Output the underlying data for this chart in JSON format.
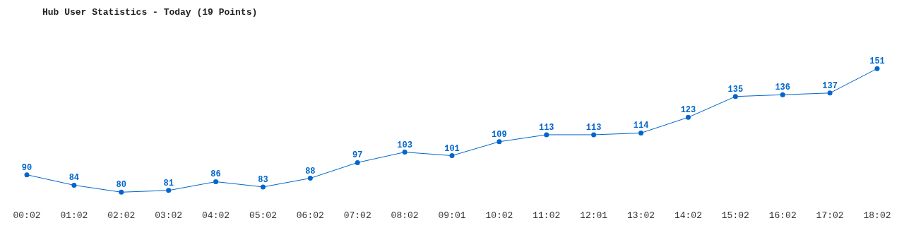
{
  "chart_data": {
    "type": "line",
    "title": "Hub User Statistics - Today (19 Points)",
    "categories": [
      "00:02",
      "01:02",
      "02:02",
      "03:02",
      "04:02",
      "05:02",
      "06:02",
      "07:02",
      "08:02",
      "09:01",
      "10:02",
      "11:02",
      "12:01",
      "13:02",
      "14:02",
      "15:02",
      "16:02",
      "17:02",
      "18:02"
    ],
    "series": [
      {
        "color": "#0066cc",
        "values": [
          90,
          84,
          80,
          81,
          86,
          83,
          88,
          97,
          103,
          101,
          109,
          113,
          113,
          114,
          123,
          135,
          136,
          137,
          151
        ]
      }
    ],
    "data_labels": true,
    "marker": "circle",
    "grid": false,
    "legend": false,
    "line_style": "solid"
  }
}
